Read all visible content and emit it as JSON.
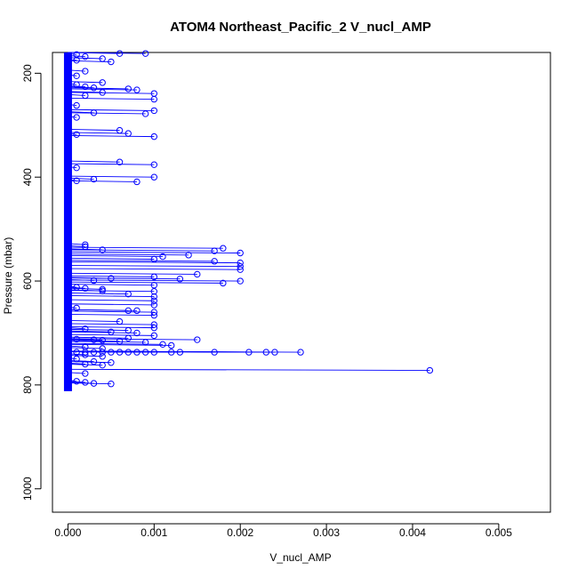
{
  "chart_data": {
    "type": "scatter",
    "title": "ATOM4 Northeast_Pacific_2 V_nucl_AMP",
    "xlabel": "V_nucl_AMP",
    "ylabel": "Pressure (mbar)",
    "xlim": [
      -0.00018,
      0.0056
    ],
    "ylim": [
      1045,
      160
    ],
    "y_inverted": true,
    "xticks": [
      0.0,
      0.001,
      0.002,
      0.003,
      0.004,
      0.005
    ],
    "xtick_labels": [
      "0.000",
      "0.001",
      "0.002",
      "0.003",
      "0.004",
      "0.005"
    ],
    "yticks": [
      200,
      400,
      600,
      800,
      1000
    ],
    "ytick_labels": [
      "200",
      "400",
      "600",
      "800",
      "1000"
    ],
    "grid": false,
    "legend": "none",
    "series_color": "#0000ff",
    "zero_band": {
      "x": 0.0,
      "p_min": 160,
      "p_max": 812
    },
    "series": [
      {
        "marker": "open-circle",
        "line": true,
        "points": [
          [
            0.0001,
            164
          ],
          [
            0.0006,
            162
          ],
          [
            0.0009,
            162
          ],
          [
            0.0002,
            168
          ],
          [
            0.0004,
            172
          ],
          [
            0.0001,
            175
          ],
          [
            0.0005,
            178
          ],
          [
            0.0002,
            196
          ],
          [
            0.0001,
            205
          ],
          [
            0.0004,
            218
          ],
          [
            0.0001,
            222
          ],
          [
            0.0002,
            226
          ],
          [
            0.0003,
            228
          ],
          [
            0.0007,
            230
          ],
          [
            0.0008,
            232
          ],
          [
            0.0004,
            237
          ],
          [
            0.001,
            239
          ],
          [
            0.0002,
            243
          ],
          [
            0.001,
            250
          ],
          [
            0.0001,
            262
          ],
          [
            0.001,
            272
          ],
          [
            0.0003,
            276
          ],
          [
            0.0009,
            278
          ],
          [
            0.0001,
            285
          ],
          [
            0.0006,
            310
          ],
          [
            0.0007,
            316
          ],
          [
            0.0001,
            318
          ],
          [
            0.001,
            322
          ],
          [
            0.0006,
            371
          ],
          [
            0.001,
            376
          ],
          [
            0.0001,
            382
          ],
          [
            0.001,
            400
          ],
          [
            0.0003,
            404
          ],
          [
            0.0001,
            407
          ],
          [
            0.0008,
            409
          ],
          [
            0.0002,
            530
          ],
          [
            0.0002,
            534
          ],
          [
            0.0018,
            537
          ],
          [
            0.0004,
            540
          ],
          [
            0.0017,
            542
          ],
          [
            0.002,
            546
          ],
          [
            0.0014,
            550
          ],
          [
            0.0011,
            553
          ],
          [
            0.001,
            558
          ],
          [
            0.0017,
            562
          ],
          [
            0.002,
            565
          ],
          [
            0.002,
            572
          ],
          [
            0.002,
            578
          ],
          [
            0.0015,
            587
          ],
          [
            0.001,
            592
          ],
          [
            0.0013,
            596
          ],
          [
            0.0005,
            595
          ],
          [
            0.0003,
            599
          ],
          [
            0.002,
            600
          ],
          [
            0.0018,
            604
          ],
          [
            0.001,
            608
          ],
          [
            0.0001,
            612
          ],
          [
            0.0002,
            614
          ],
          [
            0.0004,
            616
          ],
          [
            0.0004,
            619
          ],
          [
            0.001,
            620
          ],
          [
            0.0007,
            625
          ],
          [
            0.001,
            630
          ],
          [
            0.001,
            638
          ],
          [
            0.001,
            646
          ],
          [
            0.0001,
            652
          ],
          [
            0.0007,
            657
          ],
          [
            0.0008,
            657
          ],
          [
            0.001,
            660
          ],
          [
            0.001,
            666
          ],
          [
            0.0006,
            678
          ],
          [
            0.001,
            684
          ],
          [
            0.001,
            690
          ],
          [
            0.0002,
            692
          ],
          [
            0.0007,
            695
          ],
          [
            0.0005,
            698
          ],
          [
            0.0008,
            700
          ],
          [
            0.001,
            705
          ],
          [
            0.0007,
            710
          ],
          [
            0.0001,
            712
          ],
          [
            0.0003,
            713
          ],
          [
            0.0004,
            714
          ],
          [
            0.0015,
            713
          ],
          [
            0.0006,
            716
          ],
          [
            0.0009,
            718
          ],
          [
            0.0011,
            722
          ],
          [
            0.0012,
            724
          ],
          [
            0.0002,
            727
          ],
          [
            0.0004,
            730
          ],
          [
            0.0001,
            737
          ],
          [
            0.0002,
            737
          ],
          [
            0.0003,
            737
          ],
          [
            0.0004,
            737
          ],
          [
            0.0005,
            737
          ],
          [
            0.0006,
            737
          ],
          [
            0.0007,
            737
          ],
          [
            0.0008,
            737
          ],
          [
            0.0009,
            737
          ],
          [
            0.001,
            737
          ],
          [
            0.0012,
            737
          ],
          [
            0.0013,
            737
          ],
          [
            0.0017,
            737
          ],
          [
            0.0021,
            737
          ],
          [
            0.0023,
            737
          ],
          [
            0.0024,
            737
          ],
          [
            0.0027,
            737
          ],
          [
            0.0002,
            742
          ],
          [
            0.0004,
            745
          ],
          [
            0.0001,
            750
          ],
          [
            0.0003,
            755
          ],
          [
            0.0005,
            757
          ],
          [
            0.0002,
            760
          ],
          [
            0.0004,
            762
          ],
          [
            0.0042,
            772
          ],
          [
            0.0002,
            778
          ],
          [
            0.0001,
            793
          ],
          [
            0.0002,
            795
          ],
          [
            0.0003,
            797
          ],
          [
            0.0005,
            798
          ]
        ]
      }
    ]
  }
}
